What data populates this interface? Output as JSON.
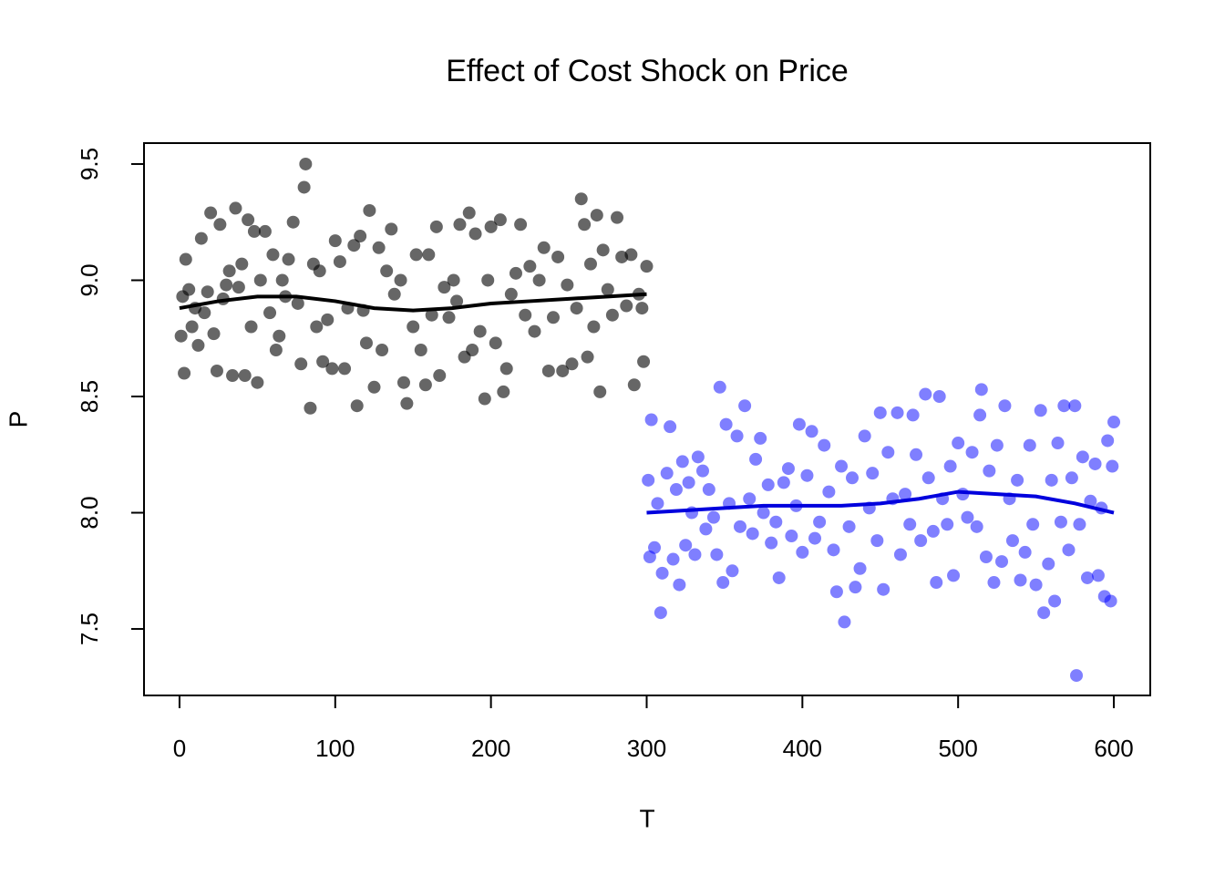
{
  "chart_data": {
    "type": "scatter",
    "title": "Effect of Cost Shock on Price",
    "x_label": "T",
    "y_label": "P",
    "xlim": [
      -22.8,
      623.4
    ],
    "ylim": [
      7.214,
      9.59
    ],
    "xticks": [
      0,
      100,
      200,
      300,
      400,
      500,
      600
    ],
    "yticks": [
      7.5,
      {
        "value": 8,
        "label": "8.0"
      },
      8.5,
      {
        "value": 9,
        "label": "9.0"
      },
      9.5
    ],
    "series": [
      {
        "color": "rgba(0,0,0,0.6)",
        "x": [
          1,
          2,
          3,
          4,
          6,
          8,
          10,
          12,
          14,
          16,
          18,
          20,
          22,
          24,
          26,
          28,
          30,
          32,
          34,
          36,
          38,
          40,
          42,
          44,
          46,
          48,
          50,
          52,
          55,
          58,
          60,
          62,
          64,
          66,
          68,
          70,
          73,
          76,
          78,
          80,
          81,
          84,
          86,
          88,
          90,
          92,
          95,
          98,
          100,
          103,
          106,
          108,
          112,
          114,
          116,
          118,
          120,
          122,
          125,
          128,
          130,
          133,
          136,
          138,
          142,
          144,
          146,
          150,
          152,
          155,
          158,
          160,
          162,
          165,
          167,
          170,
          173,
          176,
          178,
          180,
          183,
          186,
          188,
          190,
          193,
          196,
          198,
          200,
          203,
          206,
          208,
          210,
          213,
          216,
          219,
          222,
          225,
          228,
          231,
          234,
          237,
          240,
          243,
          246,
          249,
          252,
          255,
          258,
          260,
          262,
          264,
          266,
          268,
          270,
          272,
          275,
          278,
          281,
          284,
          287,
          290,
          292,
          295,
          297,
          298,
          300
        ],
        "y": [
          8.76,
          8.93,
          8.6,
          9.09,
          8.96,
          8.8,
          8.88,
          8.72,
          9.18,
          8.86,
          8.95,
          9.29,
          8.77,
          8.61,
          9.24,
          8.92,
          8.98,
          9.04,
          8.59,
          9.31,
          8.97,
          9.07,
          8.59,
          9.26,
          8.8,
          9.21,
          8.56,
          9,
          9.21,
          8.86,
          9.11,
          8.7,
          8.76,
          9,
          8.93,
          9.09,
          9.25,
          8.9,
          8.64,
          9.4,
          9.5,
          8.45,
          9.07,
          8.8,
          9.04,
          8.65,
          8.83,
          8.62,
          9.17,
          9.08,
          8.62,
          8.88,
          9.15,
          8.46,
          9.19,
          8.87,
          8.73,
          9.3,
          8.54,
          9.14,
          8.7,
          9.04,
          9.22,
          8.94,
          9,
          8.56,
          8.47,
          8.8,
          9.11,
          8.7,
          8.55,
          9.11,
          8.85,
          9.23,
          8.59,
          8.97,
          8.84,
          9,
          8.91,
          9.24,
          8.67,
          9.29,
          8.7,
          9.2,
          8.78,
          8.49,
          9,
          9.23,
          8.73,
          9.26,
          8.52,
          8.62,
          8.94,
          9.03,
          9.24,
          8.85,
          9.06,
          8.78,
          9,
          9.14,
          8.61,
          8.84,
          9.1,
          8.61,
          8.98,
          8.64,
          8.88,
          9.35,
          9.24,
          8.67,
          9.07,
          8.8,
          9.28,
          8.52,
          9.13,
          8.96,
          8.85,
          9.27,
          9.1,
          8.89,
          9.11,
          8.55,
          8.94,
          8.88,
          8.65,
          9.06
        ]
      },
      {
        "color": "rgba(0,0,255,0.5)",
        "x": [
          301,
          302,
          303,
          305,
          307,
          309,
          310,
          313,
          315,
          317,
          319,
          321,
          323,
          325,
          327,
          329,
          331,
          333,
          336,
          338,
          340,
          343,
          345,
          347,
          349,
          351,
          353,
          355,
          358,
          360,
          363,
          366,
          368,
          370,
          373,
          375,
          378,
          380,
          383,
          385,
          388,
          391,
          393,
          396,
          398,
          400,
          403,
          406,
          408,
          411,
          414,
          417,
          420,
          422,
          425,
          427,
          430,
          432,
          434,
          437,
          440,
          443,
          445,
          448,
          450,
          452,
          455,
          458,
          461,
          463,
          466,
          469,
          471,
          473,
          476,
          479,
          481,
          484,
          486,
          488,
          490,
          493,
          495,
          497,
          500,
          503,
          506,
          509,
          512,
          514,
          515,
          518,
          520,
          523,
          525,
          528,
          530,
          533,
          535,
          538,
          540,
          543,
          546,
          548,
          550,
          553,
          555,
          558,
          560,
          562,
          564,
          566,
          568,
          571,
          573,
          575,
          576,
          578,
          580,
          583,
          585,
          588,
          590,
          592,
          594,
          596,
          598,
          599,
          600
        ],
        "y": [
          8.14,
          7.81,
          8.4,
          7.85,
          8.04,
          7.57,
          7.74,
          8.17,
          8.37,
          7.8,
          8.1,
          7.69,
          8.22,
          7.86,
          8.13,
          8,
          7.82,
          8.24,
          8.18,
          7.93,
          8.1,
          7.98,
          7.82,
          8.54,
          7.7,
          8.38,
          8.04,
          7.75,
          8.33,
          7.94,
          8.46,
          8.06,
          7.91,
          8.23,
          8.32,
          8,
          8.12,
          7.87,
          7.96,
          7.72,
          8.13,
          8.19,
          7.9,
          8.03,
          8.38,
          7.83,
          8.16,
          8.35,
          7.89,
          7.96,
          8.29,
          8.09,
          7.84,
          7.66,
          8.2,
          7.53,
          7.94,
          8.15,
          7.68,
          7.76,
          8.33,
          8.02,
          8.17,
          7.88,
          8.43,
          7.67,
          8.26,
          8.06,
          8.43,
          7.82,
          8.08,
          7.95,
          8.42,
          8.25,
          7.88,
          8.51,
          8.15,
          7.92,
          7.7,
          8.5,
          8.06,
          7.95,
          8.2,
          7.73,
          8.3,
          8.08,
          7.98,
          8.26,
          7.94,
          8.42,
          8.53,
          7.81,
          8.18,
          7.7,
          8.29,
          7.79,
          8.46,
          8.06,
          7.88,
          8.14,
          7.71,
          7.83,
          8.29,
          7.95,
          7.69,
          8.44,
          7.57,
          7.78,
          8.14,
          7.62,
          8.3,
          7.96,
          8.46,
          7.84,
          8.15,
          8.46,
          7.3,
          7.95,
          8.24,
          7.72,
          8.05,
          8.21,
          7.73,
          8.02,
          7.64,
          8.31,
          7.62,
          8.2,
          8.39
        ]
      }
    ],
    "lines": [
      {
        "color": "#000000",
        "x": [
          0,
          25,
          50,
          75,
          100,
          125,
          150,
          175,
          200,
          225,
          250,
          275,
          300
        ],
        "y": [
          8.88,
          8.91,
          8.93,
          8.93,
          8.91,
          8.88,
          8.87,
          8.88,
          8.9,
          8.91,
          8.92,
          8.93,
          8.94
        ]
      },
      {
        "color": "#0000dd",
        "x": [
          300,
          325,
          350,
          375,
          400,
          425,
          450,
          475,
          500,
          525,
          550,
          575,
          600
        ],
        "y": [
          8,
          8.01,
          8.02,
          8.03,
          8.03,
          8.03,
          8.04,
          8.06,
          8.09,
          8.08,
          8.07,
          8.04,
          8
        ]
      }
    ]
  }
}
